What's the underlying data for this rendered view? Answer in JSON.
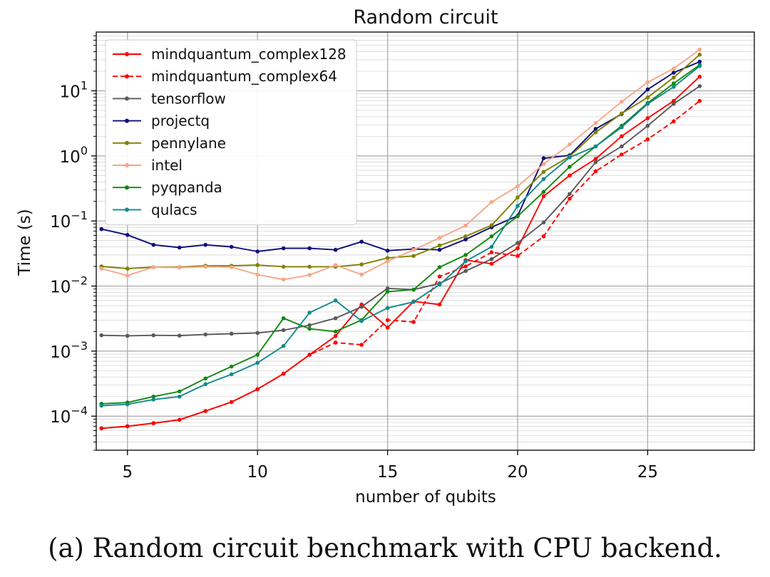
{
  "chart_data": {
    "type": "line",
    "title": "Random circuit",
    "xlabel": "number of qubits",
    "ylabel": "Time (s)",
    "yscale": "log",
    "xlim": [
      3.8,
      29.1
    ],
    "ylim": [
      3e-05,
      80
    ],
    "grid": true,
    "legend_position": "top-left",
    "x_ticks": [
      5,
      10,
      15,
      20,
      25
    ],
    "y_ticks": [
      {
        "value": 0.0001,
        "base": "10",
        "exp": "−4"
      },
      {
        "value": 0.001,
        "base": "10",
        "exp": "−3"
      },
      {
        "value": 0.01,
        "base": "10",
        "exp": "−2"
      },
      {
        "value": 0.1,
        "base": "10",
        "exp": "−1"
      },
      {
        "value": 1,
        "base": "10",
        "exp": "0"
      },
      {
        "value": 10,
        "base": "10",
        "exp": "1"
      }
    ],
    "x": [
      4,
      5,
      6,
      7,
      8,
      9,
      10,
      11,
      12,
      13,
      14,
      15,
      16,
      17,
      18,
      19,
      20,
      21,
      22,
      23,
      24,
      25,
      26,
      27
    ],
    "series": [
      {
        "name": "mindquantum_complex128",
        "color": "#ff0000",
        "dash": "solid",
        "values": [
          6.5e-05,
          7e-05,
          7.8e-05,
          8.8e-05,
          0.00012,
          0.000165,
          0.00026,
          0.00045,
          0.00088,
          0.0017,
          0.0052,
          0.0023,
          0.0058,
          0.0052,
          0.025,
          0.022,
          0.038,
          0.24,
          0.5,
          0.9,
          2.0,
          3.8,
          7.0,
          16.5
        ]
      },
      {
        "name": "mindquantum_complex64",
        "color": "#ff0000",
        "dash": "dashed",
        "values": [
          6.5e-05,
          7e-05,
          7.8e-05,
          8.8e-05,
          0.00012,
          0.000165,
          0.00026,
          0.00045,
          0.00088,
          0.00135,
          0.00125,
          0.003,
          0.0028,
          0.014,
          0.02,
          0.033,
          0.029,
          0.058,
          0.22,
          0.58,
          1.05,
          1.8,
          3.4,
          7.0
        ]
      },
      {
        "name": "tensorflow",
        "color": "#595959",
        "dash": "solid",
        "values": [
          0.00175,
          0.00172,
          0.00175,
          0.00173,
          0.0018,
          0.00185,
          0.0019,
          0.0021,
          0.0025,
          0.0032,
          0.0048,
          0.0092,
          0.0088,
          0.011,
          0.017,
          0.026,
          0.046,
          0.095,
          0.26,
          0.8,
          1.4,
          2.9,
          6.3,
          11.8
        ]
      },
      {
        "name": "projectq",
        "color": "#0d0f7a",
        "dash": "solid",
        "values": [
          0.075,
          0.061,
          0.043,
          0.039,
          0.043,
          0.04,
          0.034,
          0.038,
          0.038,
          0.036,
          0.048,
          0.035,
          0.037,
          0.036,
          0.052,
          0.08,
          0.12,
          0.92,
          1.02,
          2.6,
          4.4,
          10.5,
          19.0,
          28.0
        ]
      },
      {
        "name": "pennylane",
        "color": "#808000",
        "dash": "solid",
        "values": [
          0.02,
          0.0185,
          0.0195,
          0.0195,
          0.0205,
          0.0205,
          0.021,
          0.0198,
          0.0198,
          0.0198,
          0.0215,
          0.027,
          0.029,
          0.042,
          0.058,
          0.086,
          0.23,
          0.57,
          0.98,
          2.3,
          4.5,
          7.9,
          16.0,
          36.0
        ]
      },
      {
        "name": "intel",
        "color": "#f7a688",
        "dash": "solid",
        "values": [
          0.0185,
          0.0145,
          0.0195,
          0.0192,
          0.0198,
          0.0195,
          0.015,
          0.0126,
          0.0148,
          0.021,
          0.015,
          0.024,
          0.036,
          0.055,
          0.085,
          0.195,
          0.34,
          0.75,
          1.5,
          3.2,
          6.8,
          13.5,
          22.0,
          43.0
        ]
      },
      {
        "name": "pyqpanda",
        "color": "#118811",
        "dash": "solid",
        "values": [
          0.000155,
          0.000162,
          0.0002,
          0.00024,
          0.00038,
          0.00058,
          0.00088,
          0.0032,
          0.0022,
          0.002,
          0.003,
          0.0082,
          0.0088,
          0.0195,
          0.03,
          0.058,
          0.118,
          0.28,
          0.68,
          1.4,
          2.9,
          6.5,
          13.0,
          25.0
        ]
      },
      {
        "name": "qulacs",
        "color": "#138a8a",
        "dash": "solid",
        "values": [
          0.000145,
          0.000152,
          0.00018,
          0.0002,
          0.00031,
          0.00044,
          0.00066,
          0.0012,
          0.0039,
          0.006,
          0.0029,
          0.0046,
          0.0057,
          0.0105,
          0.024,
          0.04,
          0.17,
          0.44,
          0.95,
          1.4,
          2.75,
          6.3,
          11.5,
          24.0
        ]
      }
    ]
  },
  "caption": "(a) Random circuit benchmark with CPU backend."
}
